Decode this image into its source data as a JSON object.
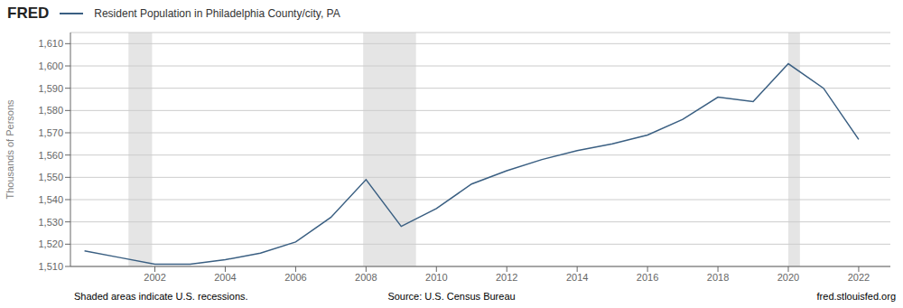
{
  "chart_data": {
    "type": "line",
    "title": "Resident Population in Philadelphia County/city, PA",
    "ylabel": "Thousands of Persons",
    "x": [
      2000,
      2001,
      2002,
      2003,
      2004,
      2005,
      2006,
      2007,
      2008,
      2009,
      2010,
      2011,
      2012,
      2013,
      2014,
      2015,
      2016,
      2017,
      2018,
      2019,
      2020,
      2021,
      2022
    ],
    "values": [
      1517,
      1514,
      1511,
      1511,
      1513,
      1516,
      1521,
      1532,
      1549,
      1528,
      1536,
      1547,
      1553,
      1558,
      1562,
      1565,
      1569,
      1576,
      1586,
      1584,
      1601,
      1590,
      1567
    ],
    "color": "#3a5f82",
    "xlim": [
      1999.6,
      2022.9
    ],
    "ylim": [
      1510,
      1615
    ],
    "xticks": [
      2002,
      2004,
      2006,
      2008,
      2010,
      2012,
      2014,
      2016,
      2018,
      2020,
      2022
    ],
    "yticks": [
      {
        "value": 1510,
        "label": "1,510"
      },
      {
        "value": 1520,
        "label": "1,520"
      },
      {
        "value": 1530,
        "label": "1,530"
      },
      {
        "value": 1540,
        "label": "1,540"
      },
      {
        "value": 1550,
        "label": "1,550"
      },
      {
        "value": 1560,
        "label": "1,560"
      },
      {
        "value": 1570,
        "label": "1,570"
      },
      {
        "value": 1580,
        "label": "1,580"
      },
      {
        "value": 1590,
        "label": "1,590"
      },
      {
        "value": 1600,
        "label": "1,600"
      },
      {
        "value": 1610,
        "label": "1,610"
      }
    ],
    "grid": true,
    "recession_bands": [
      [
        2001.25,
        2001.92
      ],
      [
        2007.92,
        2009.42
      ],
      [
        2020.0,
        2020.33
      ]
    ],
    "annotations": [
      "FRED",
      "Shaded areas indicate U.S. recessions.",
      "Source: U.S. Census Bureau",
      "fred.stlouisfed.org"
    ]
  }
}
